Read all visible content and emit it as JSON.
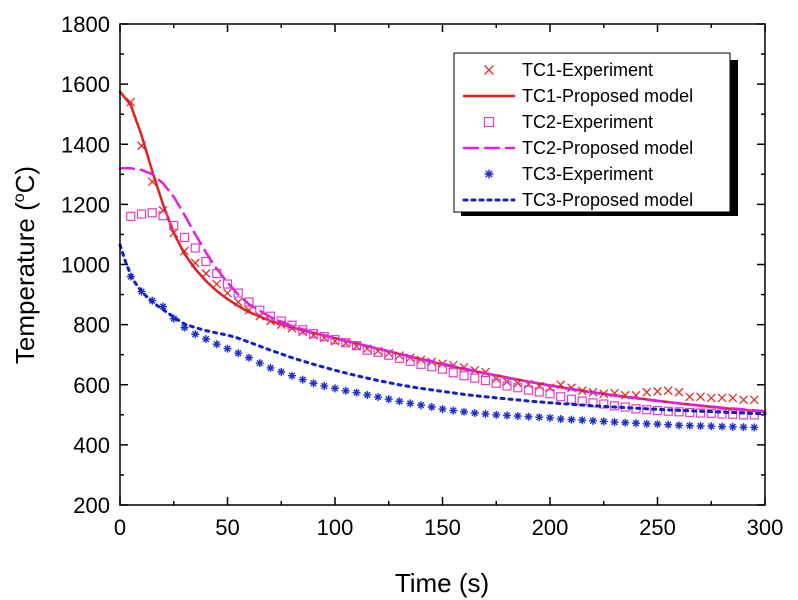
{
  "chart_data": {
    "type": "scatter",
    "xlabel": "Time (s)",
    "ylabel_main": "Temperature (",
    "ylabel_sup": "o",
    "ylabel_unit": "C)",
    "xlim": [
      0,
      300
    ],
    "ylim": [
      200,
      1800
    ],
    "xticks": [
      0,
      50,
      100,
      150,
      200,
      250,
      300
    ],
    "yticks": [
      200,
      400,
      600,
      800,
      1000,
      1200,
      1400,
      1600,
      1800
    ],
    "grid": false,
    "legend_position": "top-right",
    "series": [
      {
        "name": "TC1-Experiment",
        "kind": "marker",
        "marker": "x",
        "color": "#e0302a",
        "x": [
          5,
          10,
          15,
          20,
          25,
          30,
          35,
          40,
          45,
          50,
          55,
          60,
          65,
          70,
          75,
          80,
          85,
          90,
          95,
          100,
          105,
          110,
          115,
          120,
          125,
          130,
          135,
          140,
          145,
          150,
          155,
          160,
          165,
          170,
          175,
          180,
          185,
          190,
          195,
          200,
          205,
          210,
          215,
          220,
          225,
          230,
          235,
          240,
          245,
          250,
          255,
          260,
          265,
          270,
          275,
          280,
          285,
          290,
          295
        ],
        "y": [
          1540,
          1395,
          1275,
          1180,
          1105,
          1045,
          1005,
          970,
          935,
          905,
          875,
          848,
          828,
          812,
          800,
          788,
          776,
          765,
          756,
          745,
          738,
          728,
          720,
          712,
          705,
          697,
          690,
          683,
          676,
          670,
          665,
          658,
          648,
          642,
          620,
          610,
          605,
          602,
          596,
          590,
          600,
          590,
          580,
          575,
          570,
          572,
          565,
          565,
          575,
          578,
          580,
          575,
          560,
          560,
          556,
          556,
          556,
          550,
          550
        ]
      },
      {
        "name": "TC1-Proposed model",
        "kind": "line",
        "dash": "solid",
        "color": "#e02020",
        "x": [
          0,
          5,
          10,
          15,
          20,
          25,
          30,
          35,
          40,
          45,
          50,
          55,
          60,
          70,
          80,
          90,
          100,
          110,
          120,
          130,
          140,
          150,
          160,
          170,
          180,
          190,
          200,
          210,
          220,
          230,
          240,
          250,
          260,
          270,
          280,
          290,
          300
        ],
        "y": [
          1575,
          1530,
          1430,
          1310,
          1200,
          1105,
          1035,
          985,
          945,
          912,
          885,
          862,
          842,
          812,
          790,
          772,
          755,
          738,
          720,
          702,
          685,
          668,
          652,
          638,
          624,
          610,
          598,
          586,
          575,
          565,
          556,
          547,
          538,
          530,
          523,
          516,
          510
        ]
      },
      {
        "name": "TC2-Experiment",
        "kind": "marker",
        "marker": "square",
        "color": "#e040c8",
        "x": [
          5,
          10,
          15,
          20,
          25,
          30,
          35,
          40,
          45,
          50,
          55,
          60,
          65,
          70,
          75,
          80,
          85,
          90,
          95,
          100,
          105,
          110,
          115,
          120,
          125,
          130,
          135,
          140,
          145,
          150,
          155,
          160,
          165,
          170,
          175,
          180,
          185,
          190,
          195,
          200,
          205,
          210,
          215,
          220,
          225,
          230,
          235,
          240,
          245,
          250,
          255,
          260,
          265,
          270,
          275,
          280,
          285,
          290,
          295
        ],
        "y": [
          1160,
          1168,
          1172,
          1162,
          1130,
          1090,
          1055,
          1010,
          970,
          935,
          905,
          875,
          848,
          828,
          812,
          798,
          783,
          770,
          760,
          750,
          740,
          730,
          715,
          708,
          698,
          688,
          678,
          668,
          660,
          652,
          640,
          630,
          622,
          614,
          605,
          596,
          590,
          582,
          576,
          570,
          560,
          552,
          546,
          540,
          536,
          530,
          526,
          520,
          517,
          514,
          512,
          510,
          508,
          506,
          505,
          503,
          502,
          500,
          500
        ]
      },
      {
        "name": "TC2-Proposed model",
        "kind": "line",
        "dash": "dashed",
        "color": "#e020e0",
        "x": [
          0,
          5,
          10,
          15,
          20,
          25,
          30,
          35,
          40,
          45,
          50,
          55,
          60,
          70,
          80,
          90,
          100,
          110,
          120,
          130,
          140,
          150,
          160,
          170,
          180,
          190,
          200,
          210,
          220,
          230,
          240,
          250,
          260,
          270,
          280,
          290,
          300
        ],
        "y": [
          1320,
          1320,
          1315,
          1300,
          1270,
          1225,
          1165,
          1100,
          1040,
          985,
          940,
          900,
          868,
          825,
          795,
          773,
          755,
          737,
          720,
          703,
          686,
          670,
          654,
          638,
          623,
          610,
          597,
          585,
          574,
          564,
          555,
          546,
          538,
          531,
          524,
          518,
          512
        ]
      },
      {
        "name": "TC3-Experiment",
        "kind": "marker",
        "marker": "asterisk",
        "color": "#2030c8",
        "x": [
          5,
          10,
          15,
          20,
          25,
          30,
          35,
          40,
          45,
          50,
          55,
          60,
          65,
          70,
          75,
          80,
          85,
          90,
          95,
          100,
          105,
          110,
          115,
          120,
          125,
          130,
          135,
          140,
          145,
          150,
          155,
          160,
          165,
          170,
          175,
          180,
          185,
          190,
          195,
          200,
          205,
          210,
          215,
          220,
          225,
          230,
          235,
          240,
          245,
          250,
          255,
          260,
          265,
          270,
          275,
          280,
          285,
          290,
          295
        ],
        "y": [
          960,
          910,
          880,
          860,
          820,
          790,
          768,
          752,
          735,
          720,
          705,
          690,
          672,
          656,
          643,
          630,
          617,
          605,
          596,
          588,
          580,
          574,
          566,
          559,
          552,
          545,
          538,
          532,
          526,
          519,
          514,
          510,
          506,
          503,
          500,
          498,
          496,
          494,
          492,
          490,
          486,
          484,
          482,
          480,
          478,
          476,
          474,
          472,
          470,
          469,
          467,
          465,
          464,
          463,
          462,
          461,
          460,
          459,
          458
        ]
      },
      {
        "name": "TC3-Proposed model",
        "kind": "line",
        "dash": "dotted",
        "color": "#1020d0",
        "x": [
          0,
          3,
          6,
          10,
          15,
          20,
          25,
          30,
          35,
          40,
          45,
          50,
          55,
          60,
          70,
          80,
          90,
          100,
          110,
          120,
          130,
          140,
          150,
          160,
          170,
          180,
          190,
          200,
          210,
          220,
          230,
          240,
          250,
          260,
          270,
          280,
          290,
          300
        ],
        "y": [
          1065,
          1000,
          950,
          910,
          875,
          850,
          825,
          802,
          790,
          780,
          772,
          765,
          755,
          742,
          715,
          690,
          668,
          648,
          630,
          614,
          600,
          588,
          578,
          568,
          560,
          553,
          546,
          540,
          535,
          530,
          526,
          522,
          518,
          515,
          512,
          509,
          506,
          503
        ]
      }
    ]
  }
}
